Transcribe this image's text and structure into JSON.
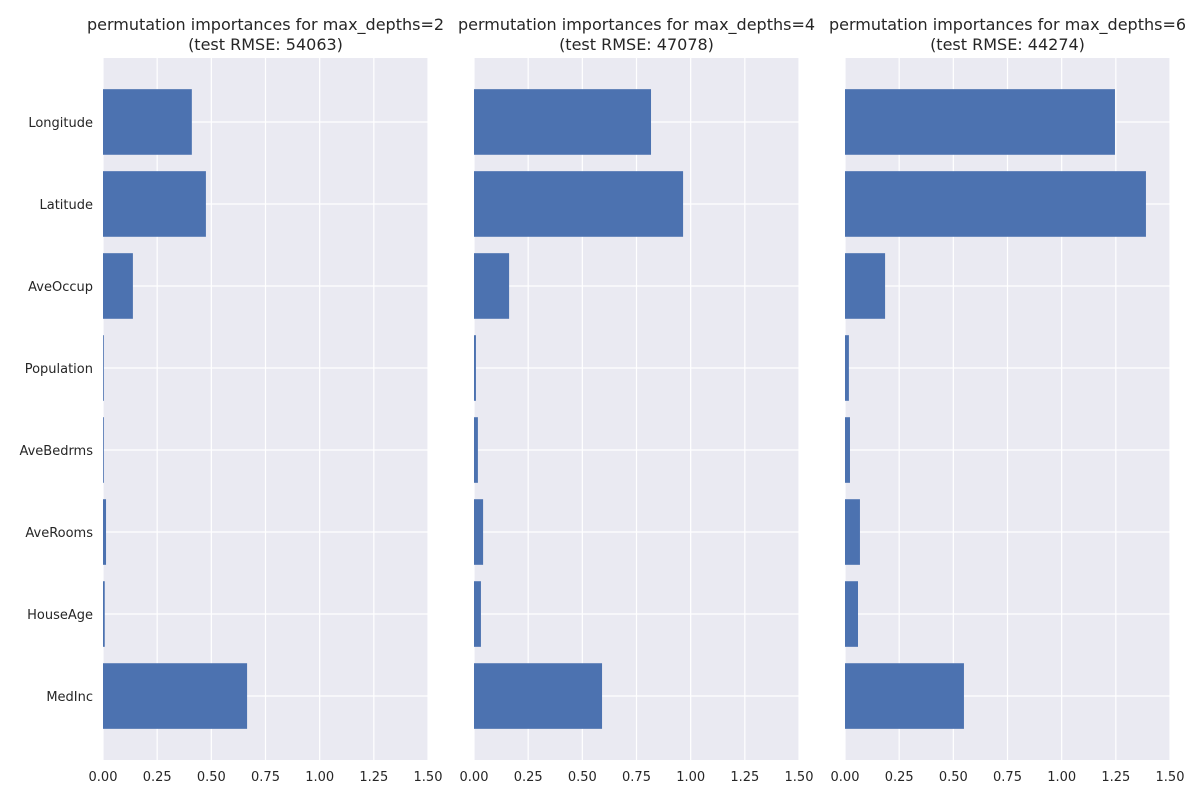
{
  "chart_data": [
    {
      "type": "bar",
      "orientation": "horizontal",
      "title": "permutation importances for max_depths=2",
      "subtitle": "(test RMSE: 54063)",
      "categories": [
        "MedInc",
        "HouseAge",
        "AveRooms",
        "AveBedrms",
        "Population",
        "AveOccup",
        "Latitude",
        "Longitude"
      ],
      "values": [
        0.665,
        0.008,
        0.014,
        0.002,
        0.002,
        0.138,
        0.475,
        0.41
      ],
      "xlim": [
        0,
        1.5
      ],
      "xticks": [
        "0.00",
        "0.25",
        "0.50",
        "0.75",
        "1.00",
        "1.25",
        "1.50"
      ],
      "show_ytick_labels": true,
      "grid": true
    },
    {
      "type": "bar",
      "orientation": "horizontal",
      "title": "permutation importances for max_depths=4",
      "subtitle": "(test RMSE: 47078)",
      "categories": [
        "MedInc",
        "HouseAge",
        "AveRooms",
        "AveBedrms",
        "Population",
        "AveOccup",
        "Latitude",
        "Longitude"
      ],
      "values": [
        0.591,
        0.032,
        0.042,
        0.018,
        0.009,
        0.162,
        0.965,
        0.817
      ],
      "xlim": [
        0,
        1.5
      ],
      "xticks": [
        "0.00",
        "0.25",
        "0.50",
        "0.75",
        "1.00",
        "1.25",
        "1.50"
      ],
      "show_ytick_labels": false,
      "grid": true
    },
    {
      "type": "bar",
      "orientation": "horizontal",
      "title": "permutation importances for max_depths=6",
      "subtitle": "(test RMSE: 44274)",
      "categories": [
        "MedInc",
        "HouseAge",
        "AveRooms",
        "AveBedrms",
        "Population",
        "AveOccup",
        "Latitude",
        "Longitude"
      ],
      "values": [
        0.549,
        0.06,
        0.069,
        0.023,
        0.018,
        0.185,
        1.389,
        1.246
      ],
      "xlim": [
        0,
        1.5
      ],
      "xticks": [
        "0.00",
        "0.25",
        "0.50",
        "0.75",
        "1.00",
        "1.25",
        "1.50"
      ],
      "show_ytick_labels": false,
      "grid": true
    }
  ],
  "colors": {
    "bar": "#4c72b0",
    "plot_background": "#eaeaf2",
    "grid": "#ffffff"
  }
}
